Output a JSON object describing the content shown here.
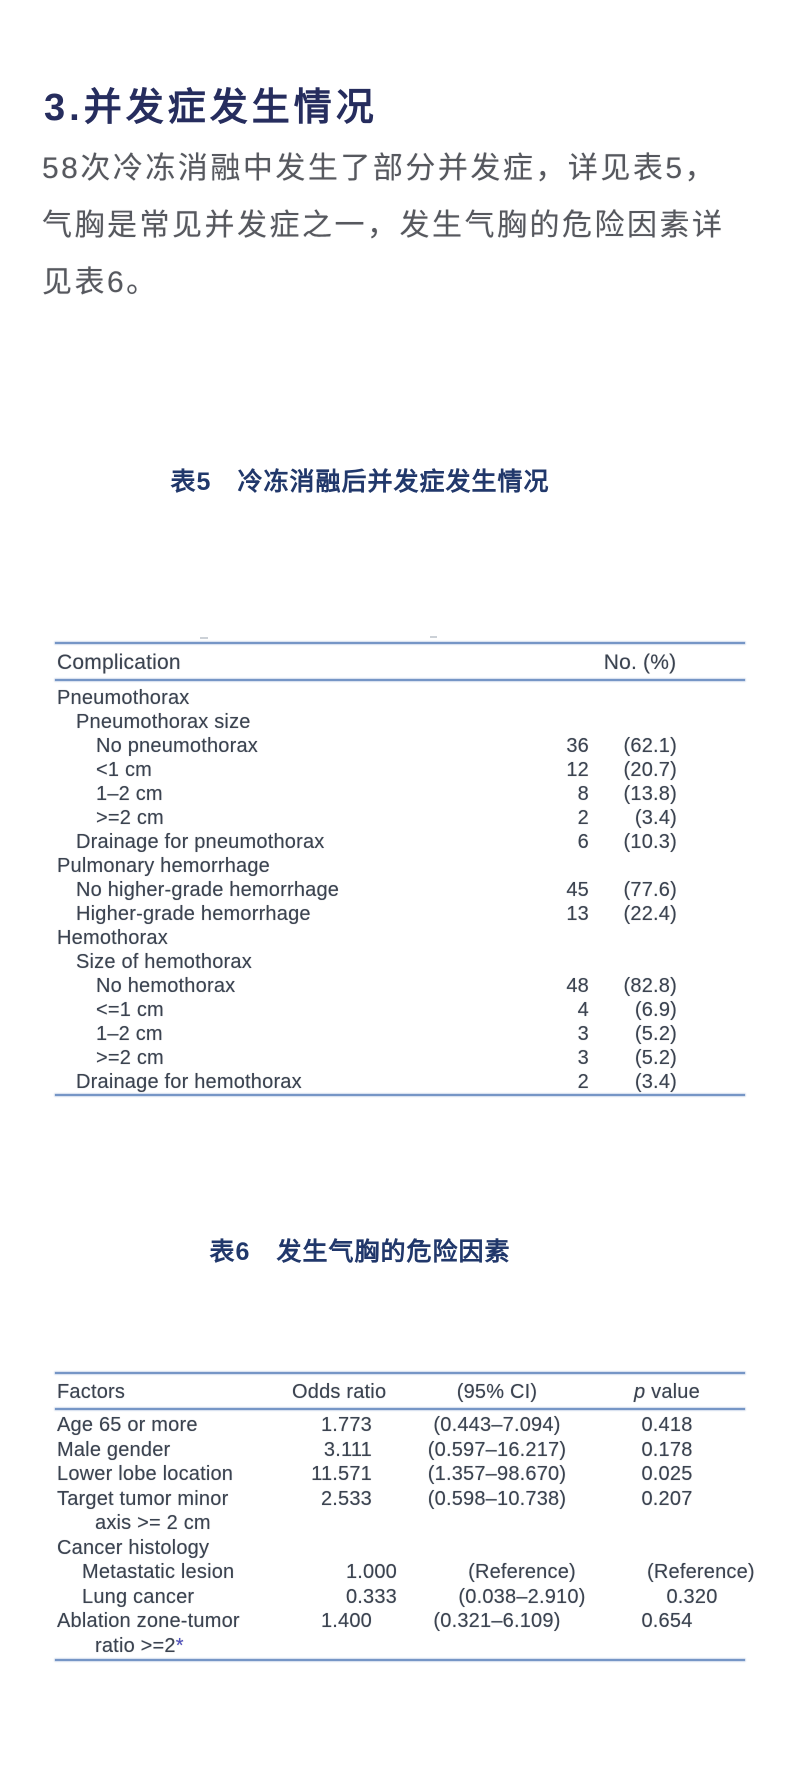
{
  "section": {
    "heading": "3.并发症发生情况"
  },
  "paragraph": {
    "lines": [
      "58次冷冻消融中发生了部分并发症，详见表5，",
      "气胸是常见并发症之一，发生气胸的危险因素详",
      "见表6。"
    ]
  },
  "table5": {
    "title": "表5　冷冻消融后并发症发生情况",
    "columns": {
      "complication": "Complication",
      "no_pct": "No. (%)"
    },
    "rows": [
      {
        "label": "Pneumothorax",
        "indent": 0,
        "no": "",
        "pct": ""
      },
      {
        "label": "Pneumothorax size",
        "indent": 1,
        "no": "",
        "pct": ""
      },
      {
        "label": "No pneumothorax",
        "indent": 2,
        "no": "36",
        "pct": "(62.1)"
      },
      {
        "label": "<1 cm",
        "indent": 2,
        "no": "12",
        "pct": "(20.7)"
      },
      {
        "label": "1–2 cm",
        "indent": 2,
        "no": "8",
        "pct": "(13.8)"
      },
      {
        "label": ">=2 cm",
        "indent": 2,
        "no": "2",
        "pct": "(3.4)"
      },
      {
        "label": "Drainage for pneumothorax",
        "indent": 1,
        "no": "6",
        "pct": "(10.3)"
      },
      {
        "label": "Pulmonary hemorrhage",
        "indent": 0,
        "no": "",
        "pct": ""
      },
      {
        "label": "No higher-grade hemorrhage",
        "indent": 1,
        "no": "45",
        "pct": "(77.6)"
      },
      {
        "label": "Higher-grade hemorrhage",
        "indent": 1,
        "no": "13",
        "pct": "(22.4)"
      },
      {
        "label": "Hemothorax",
        "indent": 0,
        "no": "",
        "pct": ""
      },
      {
        "label": "Size of hemothorax",
        "indent": 1,
        "no": "",
        "pct": ""
      },
      {
        "label": "No hemothorax",
        "indent": 2,
        "no": "48",
        "pct": "(82.8)"
      },
      {
        "label": "<=1 cm",
        "indent": 2,
        "no": "4",
        "pct": "(6.9)"
      },
      {
        "label": "1–2 cm",
        "indent": 2,
        "no": "3",
        "pct": "(5.2)"
      },
      {
        "label": ">=2 cm",
        "indent": 2,
        "no": "3",
        "pct": "(5.2)"
      },
      {
        "label": "Drainage for hemothorax",
        "indent": 1,
        "no": "2",
        "pct": "(3.4)"
      }
    ]
  },
  "table6": {
    "title": "表6　发生气胸的危险因素",
    "columns": {
      "factors": "Factors",
      "odds": "Odds ratio",
      "ci": "(95% CI)",
      "p_prefix": "p",
      "p_suffix": " value"
    },
    "rows": [
      {
        "label": "Age 65 or more",
        "indent": 0,
        "odds": "1.773",
        "ci": "(0.443–7.094)",
        "p": "0.418"
      },
      {
        "label": "Male gender",
        "indent": 0,
        "odds": "3.111",
        "ci": "(0.597–16.217)",
        "p": "0.178"
      },
      {
        "label": "Lower lobe location",
        "indent": 0,
        "odds": "11.571",
        "ci": "(1.357–98.670)",
        "p": "0.025"
      },
      {
        "label": "Target tumor minor",
        "indent": 0,
        "odds": "2.533",
        "ci": "(0.598–10.738)",
        "p": "0.207"
      },
      {
        "label": "axis >= 2 cm",
        "indent": 2,
        "odds": "",
        "ci": "",
        "p": ""
      },
      {
        "label": "Cancer histology",
        "indent": 0,
        "odds": "",
        "ci": "",
        "p": ""
      },
      {
        "label": "Metastatic lesion",
        "indent": 1,
        "odds": "1.000",
        "ci": "(Reference)",
        "p": "(Reference)"
      },
      {
        "label": "Lung cancer",
        "indent": 1,
        "odds": "0.333",
        "ci": "(0.038–2.910)",
        "p": "0.320"
      },
      {
        "label": "Ablation zone-tumor",
        "indent": 0,
        "odds": "1.400",
        "ci": "(0.321–6.109)",
        "p": "0.654"
      },
      {
        "label": "ratio >=2",
        "star": "*",
        "indent": 2,
        "odds": "",
        "ci": "",
        "p": ""
      }
    ]
  },
  "colors": {
    "heading_navy": "#262d5e",
    "title_navy": "#21386b",
    "body_gray": "#56585e",
    "table_text": "#3b4350",
    "table_rule_blue": "#7696c6",
    "asterisk_indigo": "#4f4fc0"
  }
}
